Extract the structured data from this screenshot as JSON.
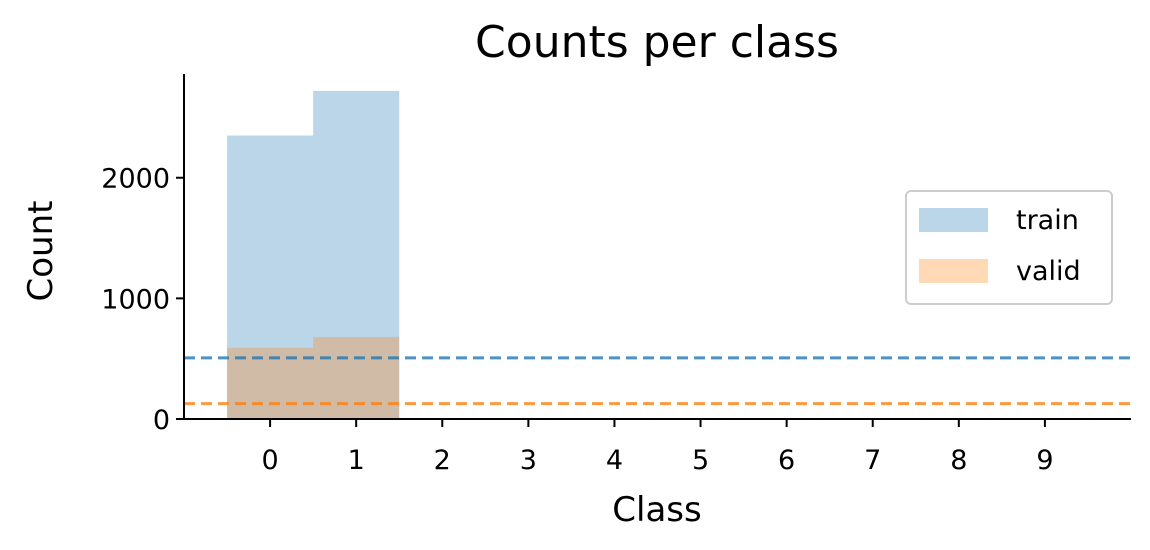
{
  "chart_data": {
    "type": "bar",
    "title": "Counts per class",
    "xlabel": "Class",
    "ylabel": "Count",
    "categories": [
      "0",
      "1",
      "2",
      "3",
      "4",
      "5",
      "6",
      "7",
      "8",
      "9"
    ],
    "series": [
      {
        "name": "train",
        "values": [
          2350,
          2720,
          0,
          0,
          0,
          0,
          0,
          0,
          0,
          0
        ],
        "color": "#1f77b4",
        "opacity": 0.3
      },
      {
        "name": "valid",
        "values": [
          590,
          680,
          0,
          0,
          0,
          0,
          0,
          0,
          0,
          0
        ],
        "color": "#ff7f0e",
        "opacity": 0.3
      }
    ],
    "reference_lines": [
      {
        "y": 507,
        "color": "#1f77b4",
        "style": "dashed"
      },
      {
        "y": 127,
        "color": "#ff7f0e",
        "style": "dashed"
      }
    ],
    "xlim": [
      -1,
      10
    ],
    "ylim": [
      0,
      2860
    ],
    "yticks": [
      0,
      1000,
      2000
    ],
    "grid": false,
    "legend_position": "center-right"
  }
}
